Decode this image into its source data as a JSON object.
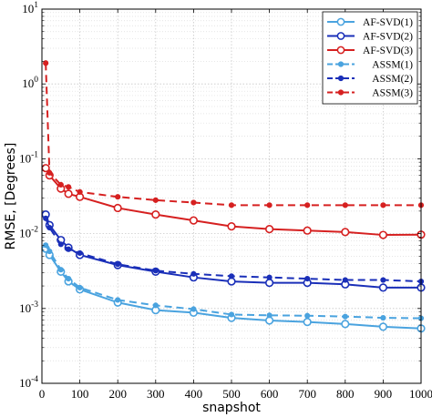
{
  "chart_data": {
    "type": "line",
    "title": "",
    "xlabel": "snapshot",
    "ylabel": "RMSE, [Degrees]",
    "xlim": [
      0,
      1000
    ],
    "ylim": [
      0.0001,
      10
    ],
    "yscale": "log",
    "grid": true,
    "legend_position": "top-right",
    "x_ticks": [
      "0",
      "100",
      "200",
      "300",
      "400",
      "500",
      "600",
      "700",
      "800",
      "900",
      "1000"
    ],
    "y_ticks": [
      {
        "base": "10",
        "exp": "1",
        "value": 10
      },
      {
        "base": "10",
        "exp": "0",
        "value": 1
      },
      {
        "base": "10",
        "exp": "-1",
        "value": 0.1
      },
      {
        "base": "10",
        "exp": "-2",
        "value": 0.01
      },
      {
        "base": "10",
        "exp": "-3",
        "value": 0.001
      },
      {
        "base": "10",
        "exp": "-4",
        "value": 0.0001
      }
    ],
    "series": [
      {
        "name": "AF-SVD(1)",
        "color": "#4aa3df",
        "dash": false,
        "marker": "circle",
        "x": [
          10,
          20,
          50,
          70,
          100,
          200,
          300,
          400,
          500,
          600,
          700,
          800,
          900,
          1000
        ],
        "y": [
          0.0063,
          0.0052,
          0.0031,
          0.0023,
          0.0018,
          0.0012,
          0.00095,
          0.00088,
          0.00075,
          0.00069,
          0.00066,
          0.00062,
          0.00057,
          0.00054
        ]
      },
      {
        "name": "AF-SVD(2)",
        "color": "#1a2fb8",
        "dash": false,
        "marker": "circle",
        "x": [
          10,
          20,
          50,
          70,
          100,
          200,
          300,
          400,
          500,
          600,
          700,
          800,
          900,
          1000
        ],
        "y": [
          0.018,
          0.013,
          0.0082,
          0.0065,
          0.0052,
          0.0038,
          0.0031,
          0.0026,
          0.0023,
          0.0022,
          0.0022,
          0.0021,
          0.0019,
          0.0019
        ]
      },
      {
        "name": "AF-SVD(3)",
        "color": "#d62020",
        "dash": false,
        "marker": "circle",
        "x": [
          10,
          20,
          50,
          70,
          100,
          200,
          300,
          400,
          500,
          600,
          700,
          800,
          900,
          1000
        ],
        "y": [
          0.075,
          0.06,
          0.04,
          0.034,
          0.031,
          0.022,
          0.018,
          0.015,
          0.0125,
          0.0115,
          0.011,
          0.0105,
          0.0096,
          0.0097
        ]
      },
      {
        "name": "ASSM(1)",
        "color": "#4aa3df",
        "dash": true,
        "marker": "dot",
        "x": [
          10,
          20,
          50,
          70,
          100,
          200,
          300,
          400,
          500,
          600,
          700,
          800,
          900,
          1000
        ],
        "y": [
          0.007,
          0.0058,
          0.0033,
          0.0025,
          0.0019,
          0.0013,
          0.0011,
          0.00098,
          0.00083,
          0.00081,
          0.0008,
          0.00078,
          0.00075,
          0.00074
        ]
      },
      {
        "name": "ASSM(2)",
        "color": "#1a2fb8",
        "dash": true,
        "marker": "dot",
        "x": [
          10,
          20,
          50,
          70,
          100,
          200,
          300,
          400,
          500,
          600,
          700,
          800,
          900,
          1000
        ],
        "y": [
          0.016,
          0.012,
          0.0072,
          0.0062,
          0.0055,
          0.0039,
          0.0032,
          0.0029,
          0.0027,
          0.0026,
          0.0025,
          0.0024,
          0.0024,
          0.0023
        ]
      },
      {
        "name": "ASSM(3)",
        "color": "#d62020",
        "dash": true,
        "marker": "dot",
        "x": [
          10,
          20,
          50,
          70,
          100,
          200,
          300,
          400,
          500,
          600,
          700,
          800,
          900,
          1000
        ],
        "y": [
          1.9,
          0.065,
          0.045,
          0.042,
          0.036,
          0.031,
          0.028,
          0.026,
          0.024,
          0.024,
          0.024,
          0.024,
          0.024,
          0.024
        ]
      }
    ]
  }
}
